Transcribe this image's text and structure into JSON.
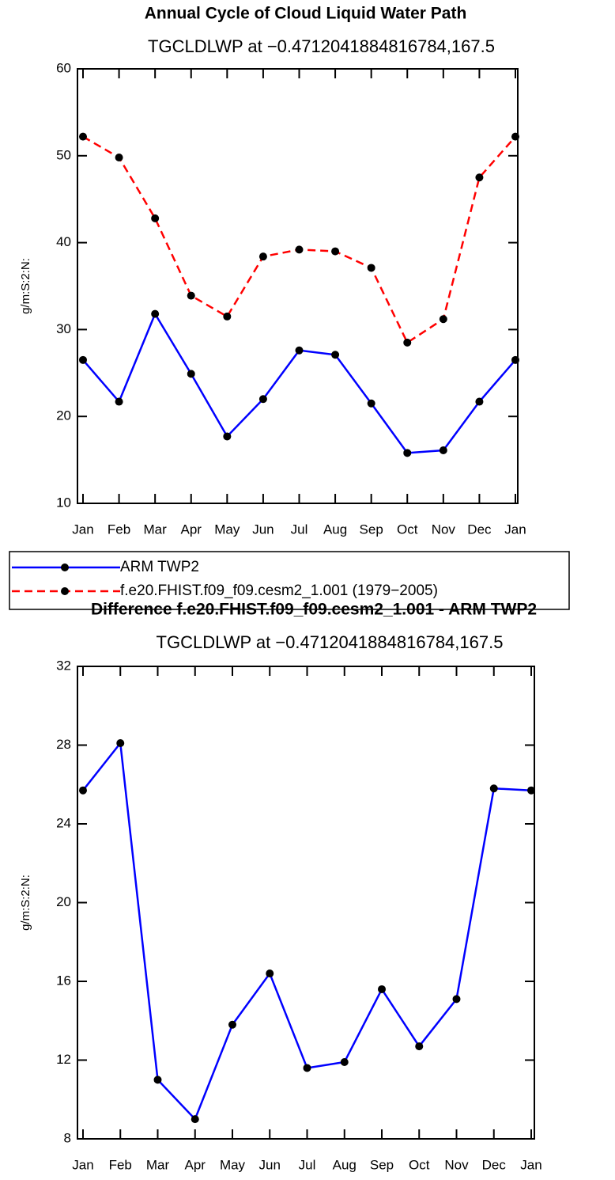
{
  "chart_data": [
    {
      "type": "line",
      "title": "Annual Cycle of Cloud Liquid Water Path",
      "subtitle": "TGCLDLWP at −0.4712041884816784,167.5",
      "ylabel": "g/m:S:2:N:",
      "categories": [
        "Jan",
        "Feb",
        "Mar",
        "Apr",
        "May",
        "Jun",
        "Jul",
        "Aug",
        "Sep",
        "Oct",
        "Nov",
        "Dec",
        "Jan"
      ],
      "ylim": [
        10,
        60
      ],
      "yticks": [
        10,
        20,
        30,
        40,
        50,
        60
      ],
      "series": [
        {
          "name": "ARM TWP2",
          "color": "#0000ff",
          "values": [
            26.5,
            21.7,
            31.8,
            24.9,
            17.7,
            22.0,
            27.6,
            27.1,
            21.5,
            15.8,
            16.1,
            21.7,
            26.5
          ]
        },
        {
          "name": "f.e20.FHIST.f09_f09.cesm2_1.001 (1979−2005)",
          "color": "#ff0000",
          "dashed": true,
          "values": [
            52.2,
            49.8,
            42.8,
            33.9,
            31.5,
            38.4,
            39.2,
            39.0,
            37.1,
            28.5,
            31.2,
            47.5,
            52.2
          ]
        }
      ]
    },
    {
      "type": "line",
      "title": "Difference f.e20.FHIST.f09_f09.cesm2_1.001 - ARM TWP2",
      "subtitle": "TGCLDLWP at −0.4712041884816784,167.5",
      "ylabel": "g/m:S:2:N:",
      "categories": [
        "Jan",
        "Feb",
        "Mar",
        "Apr",
        "May",
        "Jun",
        "Jul",
        "Aug",
        "Sep",
        "Oct",
        "Nov",
        "Dec",
        "Jan"
      ],
      "ylim": [
        8,
        32
      ],
      "yticks": [
        8,
        12,
        16,
        20,
        24,
        28,
        32
      ],
      "series": [
        {
          "color": "#0000ff",
          "values": [
            25.7,
            28.1,
            11.0,
            9.0,
            13.8,
            16.4,
            11.6,
            11.9,
            15.6,
            12.7,
            15.1,
            25.8,
            25.7
          ]
        }
      ]
    }
  ]
}
